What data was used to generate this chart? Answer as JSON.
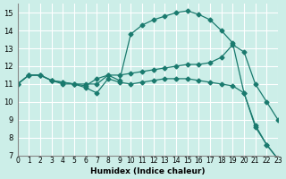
{
  "xlabel": "Humidex (Indice chaleur)",
  "background_color": "#cceee8",
  "grid_color": "#ffffff",
  "line_color": "#1a7a6e",
  "xlim": [
    0,
    23
  ],
  "ylim": [
    7,
    15.5
  ],
  "yticks": [
    7,
    8,
    9,
    10,
    11,
    12,
    13,
    14,
    15
  ],
  "xticks": [
    0,
    1,
    2,
    3,
    4,
    5,
    6,
    7,
    8,
    9,
    10,
    11,
    12,
    13,
    14,
    15,
    16,
    17,
    18,
    19,
    20,
    21,
    22,
    23
  ],
  "xtick_labels": [
    "0",
    "1",
    "2",
    "3",
    "4",
    "5",
    "6",
    "7",
    "8",
    "9",
    "10",
    "11",
    "12",
    "13",
    "14",
    "15",
    "16",
    "17",
    "18",
    "19",
    "20",
    "21",
    "22",
    "23"
  ],
  "series": [
    {
      "x": [
        0,
        1,
        2,
        3,
        4,
        5,
        6,
        7,
        8,
        9,
        10,
        11,
        12,
        13,
        14,
        15,
        16,
        17,
        18,
        19,
        20,
        21,
        22,
        23
      ],
      "y": [
        11.0,
        11.5,
        11.5,
        11.2,
        11.1,
        11.0,
        10.9,
        11.3,
        11.5,
        11.2,
        13.8,
        14.3,
        14.6,
        14.8,
        15.0,
        15.1,
        14.9,
        14.6,
        14.0,
        13.3,
        10.5,
        8.6,
        7.6,
        6.8
      ]
    },
    {
      "x": [
        0,
        1,
        2,
        3,
        4,
        5,
        6,
        7,
        8,
        9,
        10,
        11,
        12,
        13,
        14,
        15,
        16,
        17,
        18,
        19,
        20,
        21,
        22,
        23
      ],
      "y": [
        11.0,
        11.5,
        11.5,
        11.2,
        11.1,
        11.0,
        10.8,
        10.5,
        11.3,
        11.1,
        11.0,
        11.1,
        11.2,
        11.3,
        11.3,
        11.3,
        11.2,
        11.1,
        11.0,
        10.9,
        10.5,
        8.7,
        7.6,
        6.8
      ]
    },
    {
      "x": [
        0,
        1,
        2,
        3,
        4,
        5,
        6,
        7,
        8,
        9,
        10,
        11,
        12,
        13,
        14,
        15,
        16,
        17,
        18,
        19,
        20,
        21,
        22,
        23
      ],
      "y": [
        11.0,
        11.5,
        11.5,
        11.2,
        11.0,
        11.0,
        11.0,
        11.0,
        11.5,
        11.5,
        11.6,
        11.7,
        11.8,
        11.9,
        12.0,
        12.1,
        12.1,
        12.2,
        12.5,
        13.2,
        12.8,
        11.0,
        10.0,
        9.0
      ]
    }
  ]
}
